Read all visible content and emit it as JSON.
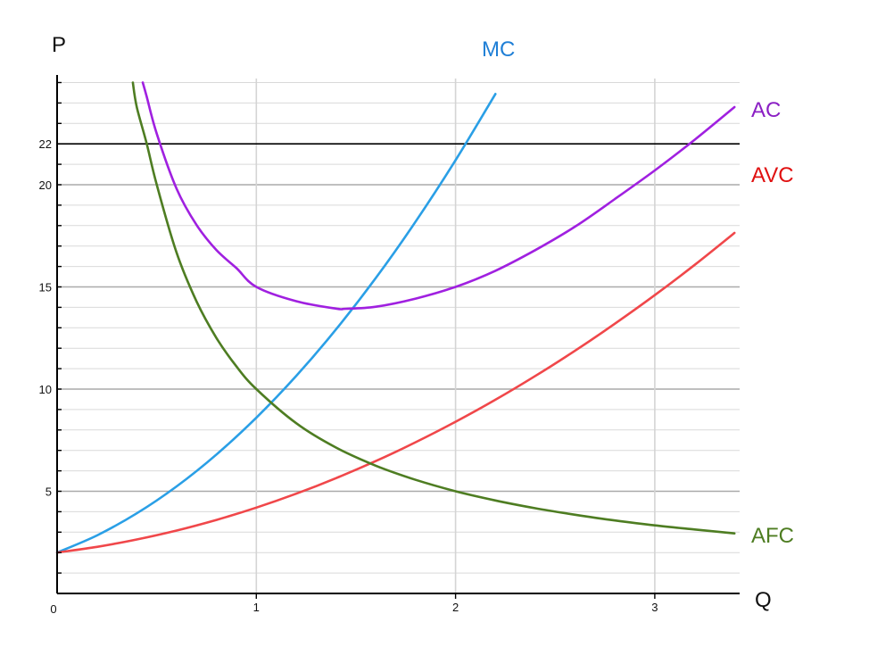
{
  "chart_data": {
    "type": "line",
    "title": "",
    "xlabel": "Q",
    "ylabel": "P",
    "xlim": [
      0,
      3.4
    ],
    "ylim": [
      0,
      25
    ],
    "grid": true,
    "legend": "inline labels at right end of each curve",
    "origin_label": "0",
    "x_ticks": [
      {
        "value": 1,
        "label": "1"
      },
      {
        "value": 2,
        "label": "2"
      },
      {
        "value": 3,
        "label": "3"
      }
    ],
    "y_ticks": [
      {
        "value": 5,
        "label": "5"
      },
      {
        "value": 10,
        "label": "10"
      },
      {
        "value": 15,
        "label": "15"
      },
      {
        "value": 20,
        "label": "20"
      },
      {
        "value": 22,
        "label": "22"
      }
    ],
    "minor_y_step": 1,
    "price_line": {
      "y": 22,
      "color": "#000000"
    },
    "series": [
      {
        "name": "MC",
        "color": "#2a9fe6",
        "label_color": "#1f7fd6",
        "x": [
          0,
          0.2,
          0.4,
          0.6,
          0.8,
          1.0,
          1.2,
          1.4,
          1.6,
          1.8,
          2.0,
          2.2
        ],
        "y": [
          2,
          2.84,
          3.92,
          5.24,
          6.8,
          8.6,
          10.64,
          12.92,
          15.44,
          18.2,
          21.2,
          24.44
        ]
      },
      {
        "name": "AC",
        "color": "#a020e0",
        "label_color": "#8b1fc4",
        "x": [
          0.43,
          0.45,
          0.5,
          0.6,
          0.7,
          0.8,
          0.9,
          1.0,
          1.2,
          1.4,
          1.45,
          1.6,
          1.8,
          2.0,
          2.2,
          2.4,
          2.6,
          2.8,
          3.0,
          3.2,
          3.4
        ],
        "y": [
          25.0,
          24.3,
          22.5,
          19.8,
          18.03,
          16.8,
          15.92,
          15.0,
          14.3,
          13.94,
          13.93,
          14.03,
          14.43,
          15.0,
          15.79,
          16.8,
          17.95,
          19.3,
          20.7,
          22.2,
          23.8
        ]
      },
      {
        "name": "AVC",
        "color": "#f0474a",
        "label_color": "#e01010",
        "x": [
          0,
          0.2,
          0.4,
          0.6,
          0.8,
          1.0,
          1.2,
          1.4,
          1.6,
          1.8,
          2.0,
          2.2,
          2.4,
          2.6,
          2.8,
          3.0,
          3.2,
          3.4
        ],
        "y": [
          2,
          2.28,
          2.64,
          3.08,
          3.6,
          4.2,
          4.88,
          5.64,
          6.48,
          7.4,
          8.4,
          9.48,
          10.64,
          11.88,
          13.2,
          14.6,
          16.08,
          17.64
        ]
      },
      {
        "name": "AFC",
        "color": "#4e7d22",
        "label_color": "#4e7d22",
        "x": [
          0.38,
          0.4,
          0.45,
          0.5,
          0.6,
          0.7,
          0.8,
          0.9,
          1.0,
          1.2,
          1.4,
          1.6,
          1.8,
          2.0,
          2.2,
          2.4,
          2.6,
          2.8,
          3.0,
          3.2,
          3.4
        ],
        "y": [
          25.0,
          23.8,
          22.0,
          20.0,
          16.67,
          14.29,
          12.5,
          11.11,
          10.0,
          8.33,
          7.14,
          6.25,
          5.56,
          5.0,
          4.55,
          4.17,
          3.85,
          3.57,
          3.33,
          3.13,
          2.94
        ]
      }
    ]
  }
}
